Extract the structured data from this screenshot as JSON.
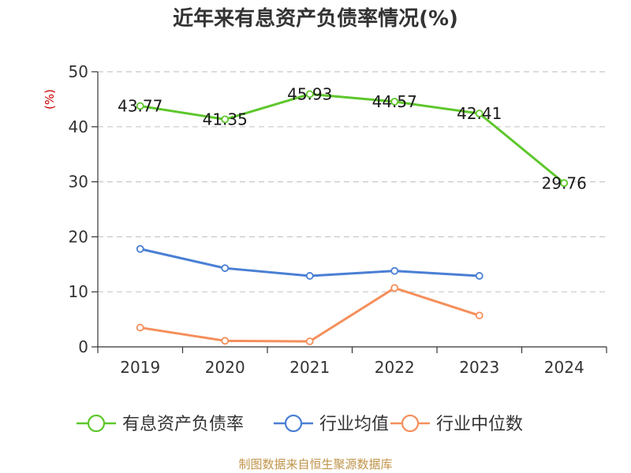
{
  "chart_data": {
    "type": "line",
    "title": "近年来有息资产负债率情况(%)",
    "ylabel": "(%)",
    "ylim": [
      0,
      50
    ],
    "yticks": [
      0,
      10,
      20,
      30,
      40,
      50
    ],
    "categories": [
      "2019",
      "2020",
      "2021",
      "2022",
      "2023",
      "2024"
    ],
    "grid": true,
    "legend_position": "bottom",
    "series": [
      {
        "name": "有息资产负债率",
        "color": "#5ec72c",
        "show_labels": true,
        "values": [
          43.77,
          41.35,
          45.93,
          44.57,
          42.41,
          29.76
        ]
      },
      {
        "name": "行业均值",
        "color": "#4a7fd4",
        "show_labels": false,
        "values": [
          17.8,
          14.3,
          12.9,
          13.8,
          12.9,
          null
        ]
      },
      {
        "name": "行业中位数",
        "color": "#f58f5b",
        "show_labels": false,
        "values": [
          3.5,
          1.1,
          1.0,
          10.7,
          5.7,
          null
        ]
      }
    ]
  },
  "colors": {
    "unit_label": "#cc0000",
    "source": "#c0944a",
    "axis": "#333333",
    "grid": "#c8c8c8"
  },
  "source": "制图数据来自恒生聚源数据库"
}
